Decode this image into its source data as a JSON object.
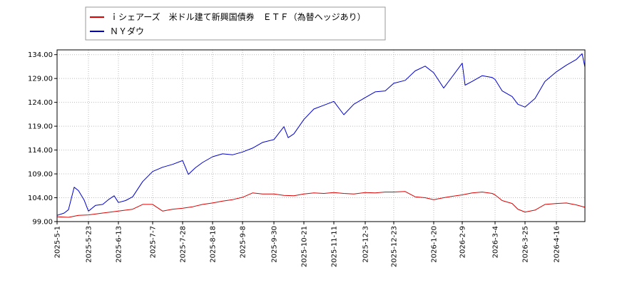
{
  "chart_data": {
    "type": "line",
    "title": "",
    "xlabel": "",
    "ylabel": "",
    "ylim": [
      99.0,
      135.0
    ],
    "y_ticks": [
      "99.00",
      "104.00",
      "109.00",
      "114.00",
      "119.00",
      "124.00",
      "129.00",
      "134.00"
    ],
    "x_ticks": [
      "2025-5-1",
      "2025-5-23",
      "2025-6-13",
      "2025-7-7",
      "2025-7-28",
      "2025-8-18",
      "2025-9-8",
      "2025-9-30",
      "2025-10-21",
      "2025-11-11",
      "2025-12-3",
      "2025-12-23",
      "2026-1-20",
      "2026-2-9",
      "2026-3-4",
      "2026-3-25",
      "2026-4-16"
    ],
    "x_range": [
      "2025-5-1",
      "2026-5-6"
    ],
    "grid": true,
    "legend_position": "top-left",
    "series": [
      {
        "name": "ｉシェアーズ　米ドル建て新興国債券　ＥＴＦ（為替ヘッジあり）",
        "color": "#dd0000",
        "points": [
          [
            "2025-5-1",
            100.0
          ],
          [
            "2025-5-9",
            99.9
          ],
          [
            "2025-5-16",
            100.3
          ],
          [
            "2025-5-23",
            100.4
          ],
          [
            "2025-6-2",
            100.8
          ],
          [
            "2025-6-13",
            101.2
          ],
          [
            "2025-6-23",
            101.6
          ],
          [
            "2025-6-30",
            102.6
          ],
          [
            "2025-7-7",
            102.6
          ],
          [
            "2025-7-14",
            101.2
          ],
          [
            "2025-7-21",
            101.6
          ],
          [
            "2025-7-28",
            101.8
          ],
          [
            "2025-8-4",
            102.1
          ],
          [
            "2025-8-11",
            102.6
          ],
          [
            "2025-8-18",
            102.9
          ],
          [
            "2025-8-25",
            103.3
          ],
          [
            "2025-9-1",
            103.6
          ],
          [
            "2025-9-8",
            104.1
          ],
          [
            "2025-9-15",
            105.0
          ],
          [
            "2025-9-22",
            104.8
          ],
          [
            "2025-9-30",
            104.8
          ],
          [
            "2025-10-7",
            104.5
          ],
          [
            "2025-10-14",
            104.4
          ],
          [
            "2025-10-21",
            104.8
          ],
          [
            "2025-10-28",
            105.0
          ],
          [
            "2025-11-4",
            104.9
          ],
          [
            "2025-11-11",
            105.1
          ],
          [
            "2025-11-18",
            104.9
          ],
          [
            "2025-11-25",
            104.8
          ],
          [
            "2025-12-3",
            105.1
          ],
          [
            "2025-12-10",
            105.0
          ],
          [
            "2025-12-17",
            105.2
          ],
          [
            "2025-12-23",
            105.2
          ],
          [
            "2025-12-31",
            105.3
          ],
          [
            "2026-1-7",
            104.2
          ],
          [
            "2026-1-14",
            104.0
          ],
          [
            "2026-1-20",
            103.6
          ],
          [
            "2026-1-27",
            104.0
          ],
          [
            "2026-2-2",
            104.3
          ],
          [
            "2026-2-9",
            104.6
          ],
          [
            "2026-2-16",
            105.0
          ],
          [
            "2026-2-23",
            105.2
          ],
          [
            "2026-3-2",
            104.9
          ],
          [
            "2026-3-4",
            104.6
          ],
          [
            "2026-3-9",
            103.4
          ],
          [
            "2026-3-16",
            102.8
          ],
          [
            "2026-3-20",
            101.6
          ],
          [
            "2026-3-25",
            101.0
          ],
          [
            "2026-4-1",
            101.4
          ],
          [
            "2026-4-8",
            102.6
          ],
          [
            "2026-4-16",
            102.8
          ],
          [
            "2026-4-23",
            102.9
          ],
          [
            "2026-4-30",
            102.5
          ],
          [
            "2026-5-6",
            102.0
          ]
        ]
      },
      {
        "name": "ＮＹダウ",
        "color": "#0000cc",
        "points": [
          [
            "2025-5-1",
            100.3
          ],
          [
            "2025-5-6",
            100.8
          ],
          [
            "2025-5-9",
            101.5
          ],
          [
            "2025-5-13",
            106.2
          ],
          [
            "2025-5-16",
            105.5
          ],
          [
            "2025-5-20",
            103.5
          ],
          [
            "2025-5-23",
            101.2
          ],
          [
            "2025-5-28",
            102.4
          ],
          [
            "2025-6-2",
            102.6
          ],
          [
            "2025-6-6",
            103.6
          ],
          [
            "2025-6-10",
            104.4
          ],
          [
            "2025-6-13",
            103.0
          ],
          [
            "2025-6-18",
            103.4
          ],
          [
            "2025-6-23",
            104.2
          ],
          [
            "2025-6-30",
            107.4
          ],
          [
            "2025-7-7",
            109.5
          ],
          [
            "2025-7-14",
            110.4
          ],
          [
            "2025-7-21",
            111.0
          ],
          [
            "2025-7-28",
            111.8
          ],
          [
            "2025-8-1",
            108.9
          ],
          [
            "2025-8-6",
            110.3
          ],
          [
            "2025-8-11",
            111.4
          ],
          [
            "2025-8-18",
            112.6
          ],
          [
            "2025-8-25",
            113.2
          ],
          [
            "2025-9-1",
            113.0
          ],
          [
            "2025-9-8",
            113.6
          ],
          [
            "2025-9-15",
            114.4
          ],
          [
            "2025-9-22",
            115.6
          ],
          [
            "2025-9-30",
            116.2
          ],
          [
            "2025-10-7",
            118.9
          ],
          [
            "2025-10-10",
            116.6
          ],
          [
            "2025-10-14",
            117.4
          ],
          [
            "2025-10-21",
            120.4
          ],
          [
            "2025-10-28",
            122.6
          ],
          [
            "2025-11-4",
            123.4
          ],
          [
            "2025-11-11",
            124.2
          ],
          [
            "2025-11-18",
            121.4
          ],
          [
            "2025-11-25",
            123.6
          ],
          [
            "2025-12-3",
            125.0
          ],
          [
            "2025-12-10",
            126.2
          ],
          [
            "2025-12-17",
            126.4
          ],
          [
            "2025-12-23",
            128.0
          ],
          [
            "2025-12-31",
            128.6
          ],
          [
            "2026-1-7",
            130.6
          ],
          [
            "2026-1-14",
            131.6
          ],
          [
            "2026-1-20",
            130.2
          ],
          [
            "2026-1-27",
            127.0
          ],
          [
            "2026-2-2",
            129.4
          ],
          [
            "2026-2-9",
            132.2
          ],
          [
            "2026-2-11",
            127.6
          ],
          [
            "2026-2-16",
            128.4
          ],
          [
            "2026-2-23",
            129.6
          ],
          [
            "2026-3-2",
            129.2
          ],
          [
            "2026-3-4",
            128.8
          ],
          [
            "2026-3-9",
            126.4
          ],
          [
            "2026-3-16",
            125.2
          ],
          [
            "2026-3-20",
            123.6
          ],
          [
            "2026-3-25",
            123.0
          ],
          [
            "2026-4-1",
            124.8
          ],
          [
            "2026-4-8",
            128.4
          ],
          [
            "2026-4-16",
            130.4
          ],
          [
            "2026-4-23",
            131.8
          ],
          [
            "2026-4-30",
            133.0
          ],
          [
            "2026-5-4",
            134.2
          ],
          [
            "2026-5-6",
            131.4
          ]
        ]
      }
    ]
  }
}
